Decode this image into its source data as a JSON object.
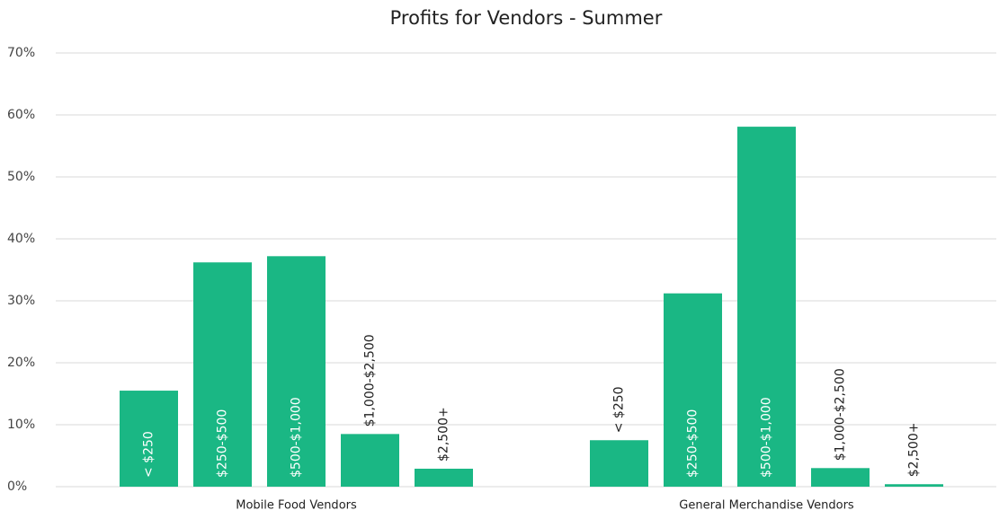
{
  "chart_data": {
    "type": "grouped_bar",
    "title": "Profits for Vendors - Summer",
    "categories": [
      "Mobile Food Vendors",
      "General Merchandise Vendors"
    ],
    "series": [
      {
        "name": "< $250",
        "color": "#1ab784",
        "values": [
          15.5,
          7.5
        ]
      },
      {
        "name": "$250-$500",
        "color": "#1ab784",
        "values": [
          36.2,
          31.2
        ]
      },
      {
        "name": "$500-$1,000",
        "color": "#1ab784",
        "values": [
          37.2,
          58.1
        ]
      },
      {
        "name": "$1,000-$2,500",
        "color": "#1ab784",
        "values": [
          8.5,
          3.0
        ]
      },
      {
        "name": "$2,500+",
        "color": "#1ab784",
        "values": [
          2.9,
          0.4
        ]
      }
    ],
    "ylim": [
      0,
      70
    ],
    "yticks": [
      {
        "value": 0,
        "label": "0%"
      },
      {
        "value": 10,
        "label": "10%"
      },
      {
        "value": 20,
        "label": "20%"
      },
      {
        "value": 30,
        "label": "30%"
      },
      {
        "value": 40,
        "label": "40%"
      },
      {
        "value": 50,
        "label": "50%"
      },
      {
        "value": 60,
        "label": "60%"
      },
      {
        "value": 70,
        "label": "70%"
      }
    ],
    "grid": true
  }
}
